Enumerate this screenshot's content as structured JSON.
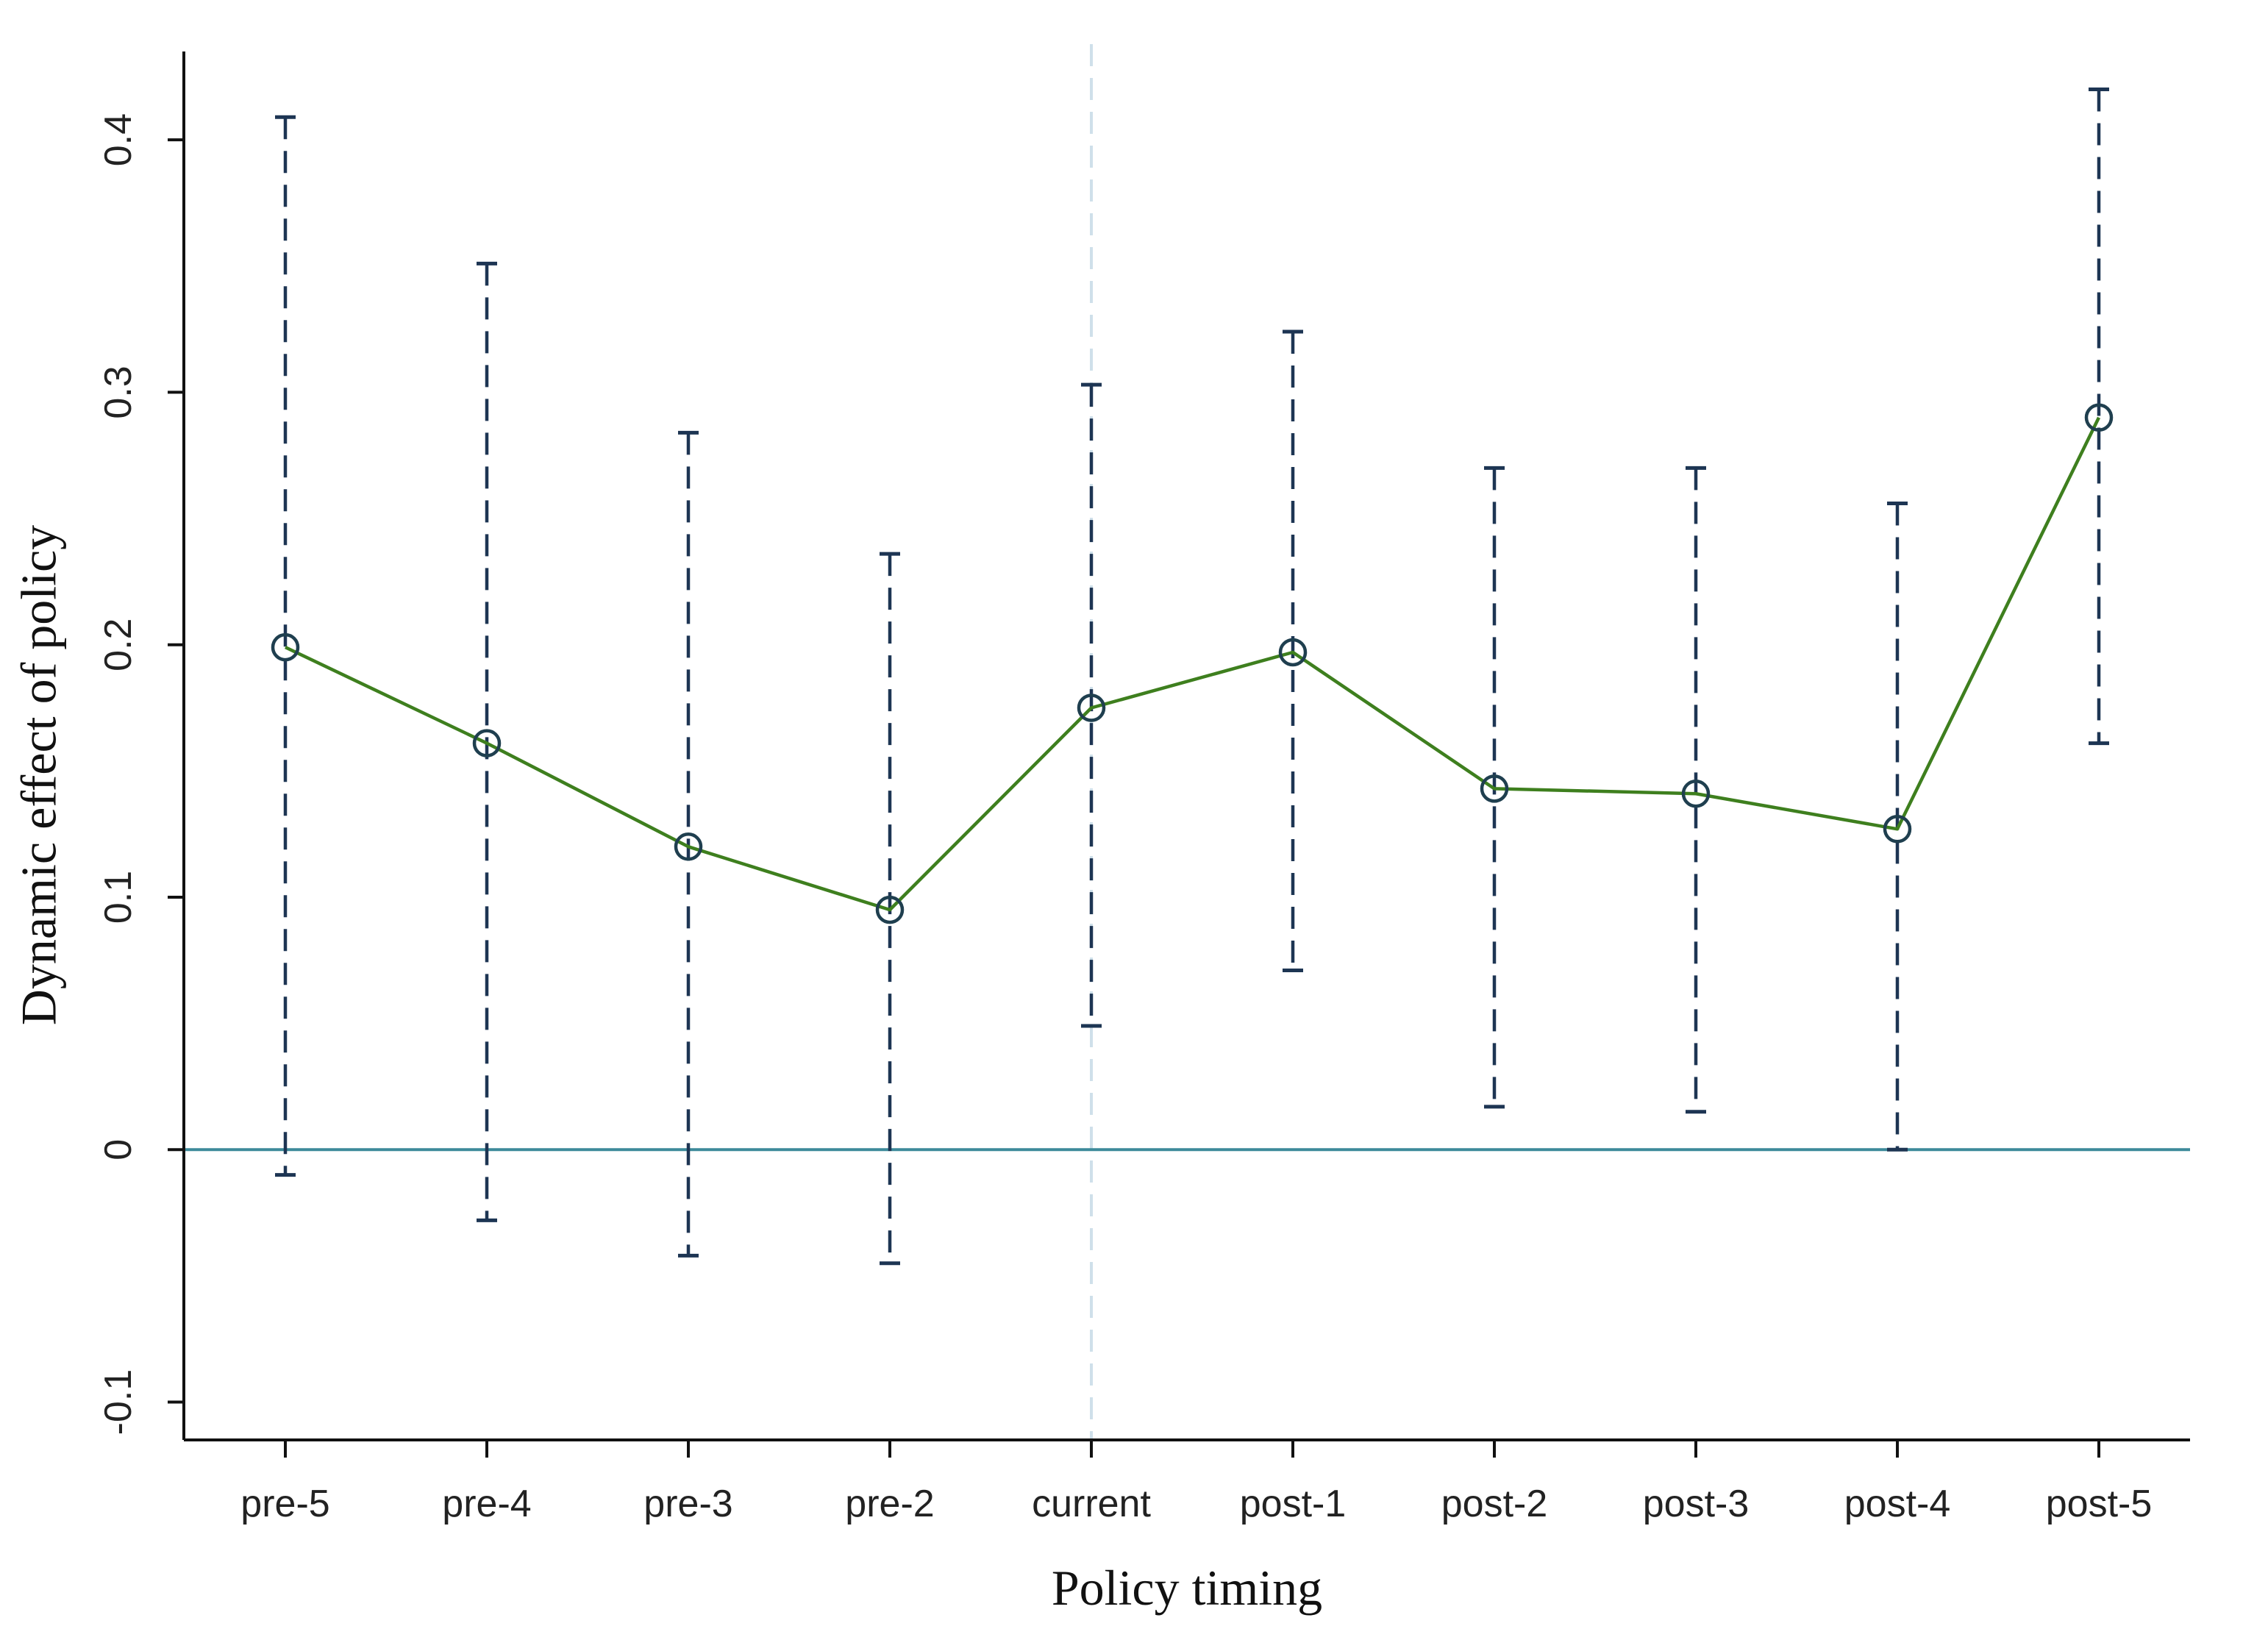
{
  "chart_data": {
    "type": "line",
    "title": "",
    "xlabel": "Policy timing",
    "ylabel": "Dynamic effect of policy",
    "categories": [
      "pre-5",
      "pre-4",
      "pre-3",
      "pre-2",
      "current",
      "post-1",
      "post-2",
      "post-3",
      "post-4",
      "post-5"
    ],
    "series": [
      {
        "values": [
          0.199,
          0.161,
          0.12,
          0.095,
          0.175,
          0.197,
          0.143,
          0.141,
          0.127,
          0.29
        ],
        "ci_lower": [
          -0.01,
          -0.028,
          -0.042,
          -0.045,
          0.049,
          0.071,
          0.017,
          0.015,
          0.0,
          0.161
        ],
        "ci_upper": [
          0.409,
          0.351,
          0.284,
          0.236,
          0.303,
          0.324,
          0.27,
          0.27,
          0.256,
          0.42
        ]
      }
    ],
    "ylim": [
      -0.115,
      0.435
    ],
    "yticks": [
      -0.1,
      0,
      0.1,
      0.2,
      0.3,
      0.4
    ],
    "ytick_labels": [
      "-0.1",
      "0",
      "0.1",
      "0.2",
      "0.3",
      "0.4"
    ],
    "reference_line_y": 0,
    "policy_line_category": "current",
    "grid": false,
    "colors": {
      "line": "#3e7f1e",
      "marker": "#1f3f4f",
      "error_bar": "#1d3553",
      "zero_line": "#3d8a9a",
      "policy_line": "#cfe0ea",
      "axis": "#111111"
    }
  }
}
